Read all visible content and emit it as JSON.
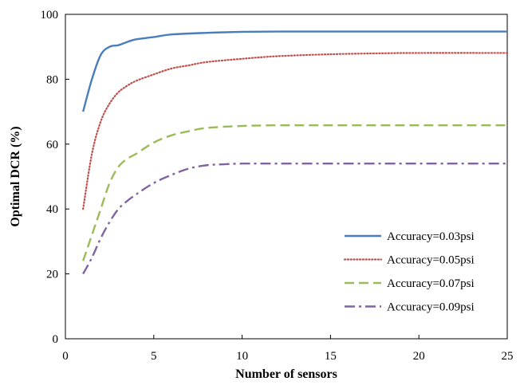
{
  "chart_data": {
    "type": "line",
    "title": "",
    "xlabel": "Number of sensors",
    "ylabel": "Optimal DCR (%)",
    "xlim": [
      0,
      25
    ],
    "ylim": [
      0,
      100
    ],
    "xticks": [
      0,
      5,
      10,
      15,
      20,
      25
    ],
    "yticks": [
      0,
      20,
      40,
      60,
      80,
      100
    ],
    "grid": false,
    "legend_position": "bottom-right",
    "series": [
      {
        "name": "Accuracy=0.03psi",
        "color": "#4a7ebb",
        "dash": "solid",
        "x": [
          1,
          1.5,
          2,
          2.5,
          3,
          3.5,
          4,
          5,
          6,
          8,
          10,
          12,
          15,
          20,
          25
        ],
        "y": [
          70,
          80,
          87.5,
          90,
          90.5,
          91.5,
          92.3,
          93.0,
          93.8,
          94.3,
          94.6,
          94.7,
          94.7,
          94.7,
          94.7
        ]
      },
      {
        "name": "Accuracy=0.05psi",
        "color": "#c0504d",
        "dash": "dotted",
        "x": [
          1,
          1.5,
          2,
          2.5,
          3,
          3.5,
          4,
          5,
          6,
          7,
          8,
          10,
          12,
          15,
          18,
          20,
          25
        ],
        "y": [
          40,
          57,
          67,
          72.5,
          76,
          78,
          79.5,
          81.5,
          83.3,
          84.3,
          85.3,
          86.3,
          87.1,
          87.7,
          88.0,
          88.1,
          88.1
        ]
      },
      {
        "name": "Accuracy=0.07psi",
        "color": "#9bbb59",
        "dash": "dashed",
        "x": [
          1,
          1.5,
          2,
          2.5,
          3,
          3.5,
          4,
          5,
          6,
          7,
          8,
          10,
          12,
          15,
          20,
          25
        ],
        "y": [
          24,
          32,
          40,
          48,
          53,
          55.5,
          57,
          60.5,
          62.7,
          64.0,
          65.0,
          65.6,
          65.8,
          65.8,
          65.8,
          65.8
        ]
      },
      {
        "name": "Accuracy=0.09psi",
        "color": "#8064a2",
        "dash": "dashdot",
        "x": [
          1,
          1.5,
          2,
          2.5,
          3,
          3.5,
          4,
          5,
          6,
          7,
          8,
          9,
          10,
          12,
          15,
          20,
          25
        ],
        "y": [
          20,
          25,
          31,
          36,
          40,
          42.5,
          44.5,
          48,
          50.5,
          52.5,
          53.5,
          53.8,
          54.0,
          54.0,
          54.0,
          54.0,
          54.0
        ]
      }
    ]
  }
}
